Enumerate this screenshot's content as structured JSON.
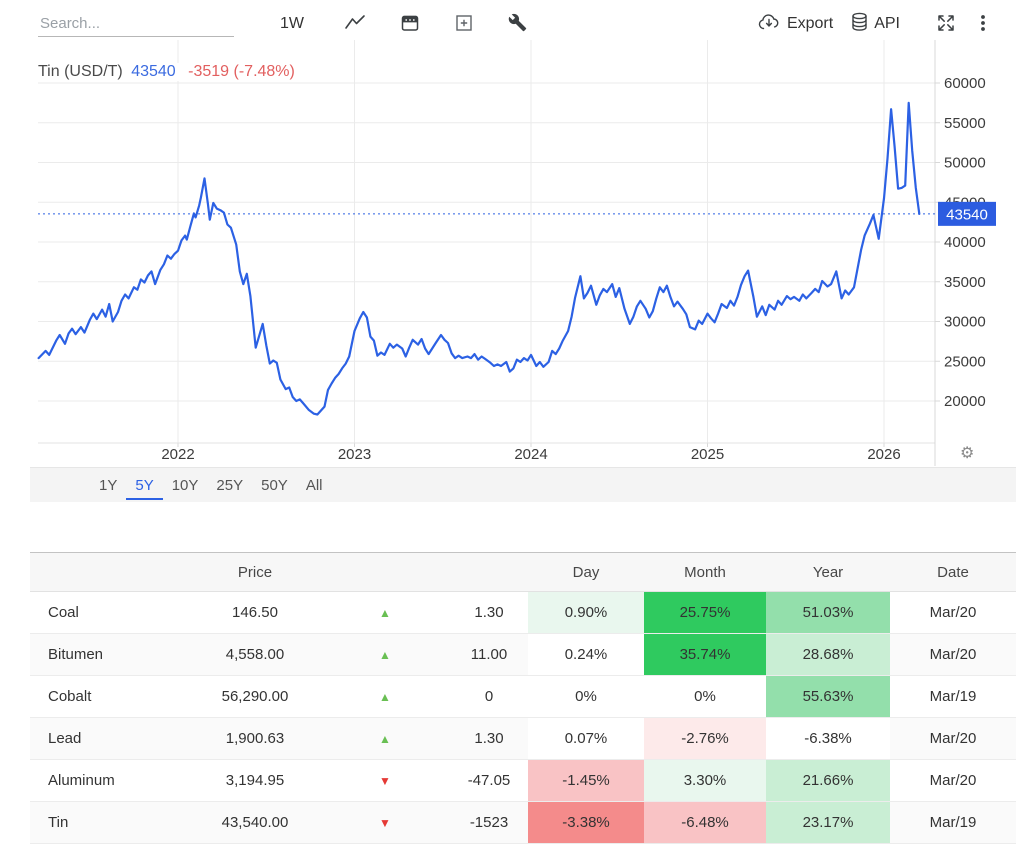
{
  "toolbar": {
    "search_placeholder": "Search...",
    "interval": "1W",
    "export_label": "Export",
    "api_label": "API"
  },
  "chart": {
    "title": "Tin (USD/T)",
    "price": "43540",
    "change": "-3519 (-7.48%)",
    "badge": "43540",
    "gear": "⚙",
    "colors": {
      "line": "#2c61e4",
      "price_blue": "#3b6be0",
      "change_red": "#e25f5f",
      "badge_bg": "#2c5ce0",
      "badge_text": "#ffffff",
      "grid": "#ebebeb",
      "axis": "#d8d8d8",
      "tick_text": "#3c3c3c"
    },
    "range_buttons": [
      {
        "label": "1Y",
        "active": false
      },
      {
        "label": "5Y",
        "active": true
      },
      {
        "label": "10Y",
        "active": false
      },
      {
        "label": "25Y",
        "active": false
      },
      {
        "label": "50Y",
        "active": false
      },
      {
        "label": "All",
        "active": false
      }
    ]
  },
  "chart_data": {
    "type": "line",
    "title": "Tin (USD/T)",
    "unit": "USD/T",
    "current": {
      "value": 43540,
      "change": -3519,
      "change_pct": "-7.48%"
    },
    "x_ticks": [
      2022,
      2023,
      2024,
      2025,
      2026
    ],
    "y_ticks": [
      60000,
      55000,
      50000,
      45000,
      40000,
      35000,
      30000,
      25000,
      20000
    ],
    "xlim": [
      2021.2,
      2026.3
    ],
    "grid": true,
    "legend": false,
    "series": [
      {
        "name": "Tin",
        "points": [
          [
            2021.21,
            25400
          ],
          [
            2021.25,
            26300
          ],
          [
            2021.27,
            25800
          ],
          [
            2021.31,
            27600
          ],
          [
            2021.33,
            28300
          ],
          [
            2021.36,
            27200
          ],
          [
            2021.38,
            28500
          ],
          [
            2021.4,
            29100
          ],
          [
            2021.42,
            28400
          ],
          [
            2021.45,
            29300
          ],
          [
            2021.47,
            28600
          ],
          [
            2021.5,
            30200
          ],
          [
            2021.52,
            31000
          ],
          [
            2021.54,
            30300
          ],
          [
            2021.57,
            31500
          ],
          [
            2021.59,
            30600
          ],
          [
            2021.61,
            32200
          ],
          [
            2021.63,
            30000
          ],
          [
            2021.66,
            31200
          ],
          [
            2021.68,
            32600
          ],
          [
            2021.7,
            33400
          ],
          [
            2021.72,
            32900
          ],
          [
            2021.75,
            34300
          ],
          [
            2021.77,
            34000
          ],
          [
            2021.79,
            35300
          ],
          [
            2021.81,
            34900
          ],
          [
            2021.83,
            35800
          ],
          [
            2021.85,
            36300
          ],
          [
            2021.87,
            34700
          ],
          [
            2021.9,
            36500
          ],
          [
            2021.92,
            37200
          ],
          [
            2021.94,
            38300
          ],
          [
            2021.96,
            37900
          ],
          [
            2021.98,
            38500
          ],
          [
            2022.0,
            38900
          ],
          [
            2022.02,
            40200
          ],
          [
            2022.04,
            40800
          ],
          [
            2022.05,
            40300
          ],
          [
            2022.07,
            42000
          ],
          [
            2022.09,
            43600
          ],
          [
            2022.1,
            43100
          ],
          [
            2022.12,
            44600
          ],
          [
            2022.13,
            45600
          ],
          [
            2022.15,
            48000
          ],
          [
            2022.17,
            44700
          ],
          [
            2022.18,
            42800
          ],
          [
            2022.2,
            44900
          ],
          [
            2022.22,
            44200
          ],
          [
            2022.24,
            44000
          ],
          [
            2022.26,
            43700
          ],
          [
            2022.28,
            42200
          ],
          [
            2022.3,
            41800
          ],
          [
            2022.33,
            39700
          ],
          [
            2022.35,
            36300
          ],
          [
            2022.37,
            34700
          ],
          [
            2022.39,
            36000
          ],
          [
            2022.41,
            33200
          ],
          [
            2022.44,
            26700
          ],
          [
            2022.46,
            28200
          ],
          [
            2022.48,
            29700
          ],
          [
            2022.5,
            27000
          ],
          [
            2022.52,
            24700
          ],
          [
            2022.54,
            25100
          ],
          [
            2022.56,
            24800
          ],
          [
            2022.58,
            22700
          ],
          [
            2022.61,
            21500
          ],
          [
            2022.63,
            21700
          ],
          [
            2022.65,
            20500
          ],
          [
            2022.67,
            20000
          ],
          [
            2022.69,
            20200
          ],
          [
            2022.71,
            19700
          ],
          [
            2022.74,
            18900
          ],
          [
            2022.77,
            18400
          ],
          [
            2022.79,
            18300
          ],
          [
            2022.81,
            18800
          ],
          [
            2022.83,
            19300
          ],
          [
            2022.85,
            21400
          ],
          [
            2022.87,
            22200
          ],
          [
            2022.89,
            22900
          ],
          [
            2022.91,
            23400
          ],
          [
            2022.93,
            24100
          ],
          [
            2022.95,
            24700
          ],
          [
            2022.97,
            25600
          ],
          [
            2023.0,
            28800
          ],
          [
            2023.03,
            30400
          ],
          [
            2023.05,
            31200
          ],
          [
            2023.07,
            30500
          ],
          [
            2023.09,
            28100
          ],
          [
            2023.11,
            27600
          ],
          [
            2023.13,
            25700
          ],
          [
            2023.15,
            26100
          ],
          [
            2023.17,
            25800
          ],
          [
            2023.2,
            27200
          ],
          [
            2023.22,
            26700
          ],
          [
            2023.24,
            27100
          ],
          [
            2023.27,
            26600
          ],
          [
            2023.29,
            25600
          ],
          [
            2023.31,
            26700
          ],
          [
            2023.33,
            27700
          ],
          [
            2023.36,
            27100
          ],
          [
            2023.38,
            27800
          ],
          [
            2023.4,
            26600
          ],
          [
            2023.42,
            25900
          ],
          [
            2023.44,
            26600
          ],
          [
            2023.46,
            27300
          ],
          [
            2023.49,
            28300
          ],
          [
            2023.51,
            27700
          ],
          [
            2023.53,
            27300
          ],
          [
            2023.55,
            26000
          ],
          [
            2023.57,
            25400
          ],
          [
            2023.59,
            25700
          ],
          [
            2023.61,
            25400
          ],
          [
            2023.64,
            25600
          ],
          [
            2023.66,
            25400
          ],
          [
            2023.68,
            25900
          ],
          [
            2023.7,
            25200
          ],
          [
            2023.72,
            25600
          ],
          [
            2023.74,
            25300
          ],
          [
            2023.77,
            24800
          ],
          [
            2023.79,
            24400
          ],
          [
            2023.81,
            24600
          ],
          [
            2023.83,
            24400
          ],
          [
            2023.86,
            24900
          ],
          [
            2023.88,
            23700
          ],
          [
            2023.9,
            24100
          ],
          [
            2023.92,
            25200
          ],
          [
            2023.94,
            24900
          ],
          [
            2023.96,
            25400
          ],
          [
            2023.98,
            25100
          ],
          [
            2024.0,
            25800
          ],
          [
            2024.03,
            24400
          ],
          [
            2024.05,
            24900
          ],
          [
            2024.07,
            24300
          ],
          [
            2024.1,
            24900
          ],
          [
            2024.12,
            26300
          ],
          [
            2024.14,
            25900
          ],
          [
            2024.16,
            26600
          ],
          [
            2024.18,
            27600
          ],
          [
            2024.21,
            28800
          ],
          [
            2024.23,
            30600
          ],
          [
            2024.25,
            33000
          ],
          [
            2024.28,
            35700
          ],
          [
            2024.3,
            32900
          ],
          [
            2024.32,
            33600
          ],
          [
            2024.34,
            34500
          ],
          [
            2024.37,
            32100
          ],
          [
            2024.39,
            33300
          ],
          [
            2024.41,
            34100
          ],
          [
            2024.43,
            33700
          ],
          [
            2024.46,
            34700
          ],
          [
            2024.48,
            33100
          ],
          [
            2024.5,
            34200
          ],
          [
            2024.53,
            31600
          ],
          [
            2024.56,
            29700
          ],
          [
            2024.58,
            30600
          ],
          [
            2024.6,
            31900
          ],
          [
            2024.62,
            32600
          ],
          [
            2024.65,
            31600
          ],
          [
            2024.67,
            30500
          ],
          [
            2024.69,
            31300
          ],
          [
            2024.71,
            32900
          ],
          [
            2024.73,
            34300
          ],
          [
            2024.75,
            33700
          ],
          [
            2024.77,
            34500
          ],
          [
            2024.79,
            33100
          ],
          [
            2024.81,
            31900
          ],
          [
            2024.83,
            32500
          ],
          [
            2024.86,
            31600
          ],
          [
            2024.88,
            30900
          ],
          [
            2024.9,
            29300
          ],
          [
            2024.93,
            29000
          ],
          [
            2024.95,
            30100
          ],
          [
            2024.97,
            29700
          ],
          [
            2025.0,
            31000
          ],
          [
            2025.02,
            30400
          ],
          [
            2025.04,
            29900
          ],
          [
            2025.06,
            31000
          ],
          [
            2025.08,
            32200
          ],
          [
            2025.11,
            31700
          ],
          [
            2025.13,
            32600
          ],
          [
            2025.15,
            32000
          ],
          [
            2025.17,
            33100
          ],
          [
            2025.19,
            34600
          ],
          [
            2025.21,
            35700
          ],
          [
            2025.23,
            36400
          ],
          [
            2025.26,
            33100
          ],
          [
            2025.28,
            30600
          ],
          [
            2025.31,
            31900
          ],
          [
            2025.33,
            30800
          ],
          [
            2025.35,
            32100
          ],
          [
            2025.38,
            31500
          ],
          [
            2025.4,
            32600
          ],
          [
            2025.42,
            32100
          ],
          [
            2025.45,
            33200
          ],
          [
            2025.47,
            32800
          ],
          [
            2025.49,
            33100
          ],
          [
            2025.52,
            32600
          ],
          [
            2025.54,
            33400
          ],
          [
            2025.56,
            32900
          ],
          [
            2025.59,
            33600
          ],
          [
            2025.61,
            34100
          ],
          [
            2025.63,
            33700
          ],
          [
            2025.65,
            35100
          ],
          [
            2025.68,
            34400
          ],
          [
            2025.7,
            34700
          ],
          [
            2025.73,
            36300
          ],
          [
            2025.76,
            32900
          ],
          [
            2025.78,
            33900
          ],
          [
            2025.8,
            33400
          ],
          [
            2025.83,
            34300
          ],
          [
            2025.84,
            35500
          ],
          [
            2025.87,
            39000
          ],
          [
            2025.89,
            40800
          ],
          [
            2025.92,
            42300
          ],
          [
            2025.94,
            43400
          ],
          [
            2025.97,
            40400
          ],
          [
            2026.0,
            45500
          ],
          [
            2026.02,
            50500
          ],
          [
            2026.04,
            56700
          ],
          [
            2026.06,
            52000
          ],
          [
            2026.08,
            46700
          ],
          [
            2026.1,
            46800
          ],
          [
            2026.12,
            47100
          ],
          [
            2026.14,
            57500
          ],
          [
            2026.16,
            51500
          ],
          [
            2026.18,
            46800
          ],
          [
            2026.2,
            43540
          ]
        ]
      }
    ]
  },
  "table": {
    "headers": [
      "",
      "Price",
      "",
      "",
      "Day",
      "Month",
      "Year",
      "Date"
    ],
    "palette": {
      "g3": "#2fca5f",
      "g2": "#93dfab",
      "g1": "#c9eed4",
      "g0": "#e9f7ee",
      "r3": "#f48b8b",
      "r2": "#f9c3c5",
      "r1": "#fdeaea",
      "w": "#ffffff"
    },
    "arrow_colors": {
      "up": "#69bf53",
      "down": "#e53935"
    },
    "arrow_glyphs": {
      "up": "▲",
      "down": "▼"
    },
    "rows": [
      {
        "name": "Coal",
        "price": "146.50",
        "dir": "up",
        "change": "1.30",
        "day": {
          "t": "0.90%",
          "c": "g0"
        },
        "month": {
          "t": "25.75%",
          "c": "g3"
        },
        "year": {
          "t": "51.03%",
          "c": "g2"
        },
        "date": "Mar/20"
      },
      {
        "name": "Bitumen",
        "price": "4,558.00",
        "dir": "up",
        "change": "11.00",
        "day": {
          "t": "0.24%",
          "c": "w"
        },
        "month": {
          "t": "35.74%",
          "c": "g3"
        },
        "year": {
          "t": "28.68%",
          "c": "g1"
        },
        "date": "Mar/20"
      },
      {
        "name": "Cobalt",
        "price": "56,290.00",
        "dir": "up",
        "change": "0",
        "day": {
          "t": "0%",
          "c": "w"
        },
        "month": {
          "t": "0%",
          "c": "w"
        },
        "year": {
          "t": "55.63%",
          "c": "g2"
        },
        "date": "Mar/19"
      },
      {
        "name": "Lead",
        "price": "1,900.63",
        "dir": "up",
        "change": "1.30",
        "day": {
          "t": "0.07%",
          "c": "w"
        },
        "month": {
          "t": "-2.76%",
          "c": "r1"
        },
        "year": {
          "t": "-6.38%",
          "c": "w"
        },
        "date": "Mar/20"
      },
      {
        "name": "Aluminum",
        "price": "3,194.95",
        "dir": "down",
        "change": "-47.05",
        "day": {
          "t": "-1.45%",
          "c": "r2"
        },
        "month": {
          "t": "3.30%",
          "c": "g0"
        },
        "year": {
          "t": "21.66%",
          "c": "g1"
        },
        "date": "Mar/20"
      },
      {
        "name": "Tin",
        "price": "43,540.00",
        "dir": "down",
        "change": "-1523",
        "day": {
          "t": "-3.38%",
          "c": "r3"
        },
        "month": {
          "t": "-6.48%",
          "c": "r2"
        },
        "year": {
          "t": "23.17%",
          "c": "g1"
        },
        "date": "Mar/19"
      }
    ]
  }
}
